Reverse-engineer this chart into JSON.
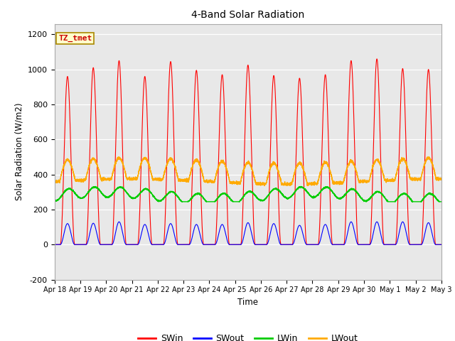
{
  "title": "4-Band Solar Radiation",
  "ylabel": "Solar Radiation (W/m2)",
  "xlabel": "Time",
  "ylim": [
    -200,
    1260
  ],
  "yticks": [
    -200,
    0,
    200,
    400,
    600,
    800,
    1000,
    1200
  ],
  "x_labels": [
    "Apr 18",
    "Apr 19",
    "Apr 20",
    "Apr 21",
    "Apr 22",
    "Apr 23",
    "Apr 24",
    "Apr 25",
    "Apr 26",
    "Apr 27",
    "Apr 28",
    "Apr 29",
    "Apr 30",
    "May 1",
    "May 2",
    "May 3"
  ],
  "legend_label": "TZ_tmet",
  "series_colors": {
    "SWin": "#ff0000",
    "SWout": "#0000ff",
    "LWin": "#00cc00",
    "LWout": "#ffaa00"
  },
  "fig_bg_color": "#ffffff",
  "plot_bg_color": "#e8e8e8",
  "n_days": 15,
  "points_per_day": 288
}
